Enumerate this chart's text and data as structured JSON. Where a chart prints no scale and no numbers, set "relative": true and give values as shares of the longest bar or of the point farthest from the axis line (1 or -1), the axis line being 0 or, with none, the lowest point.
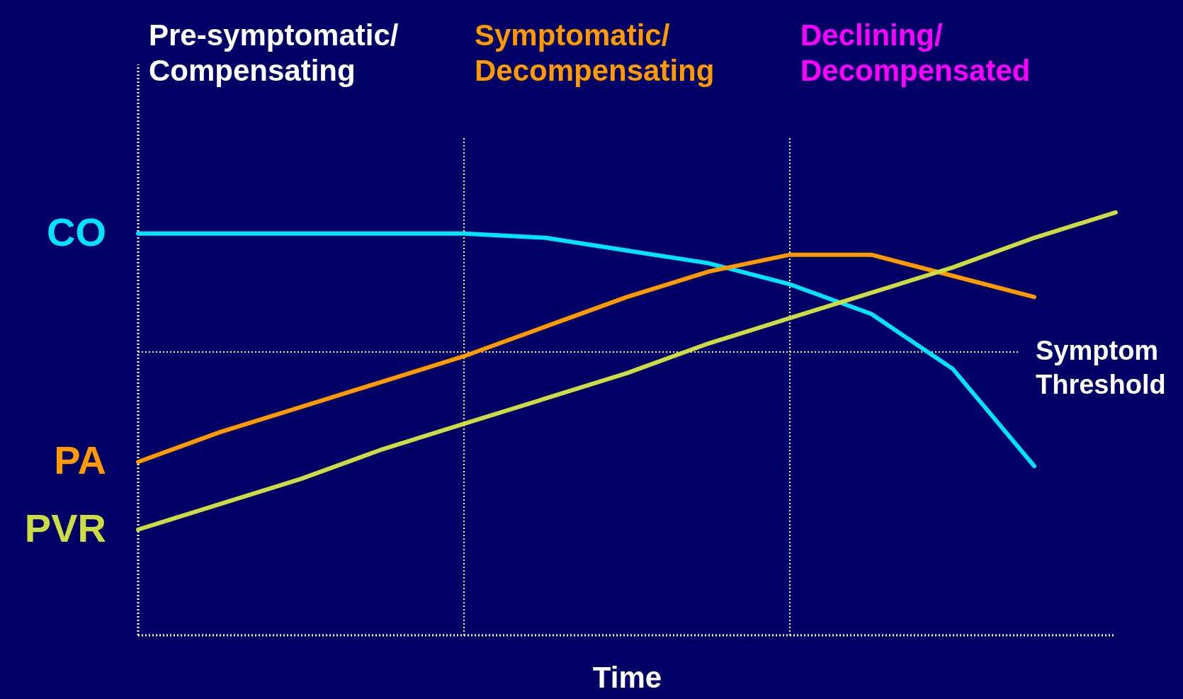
{
  "chart_data": {
    "type": "line",
    "relative": true,
    "xlabel": "Time",
    "categories": [
      null,
      null,
      null,
      null,
      null,
      null,
      null,
      null,
      null,
      null,
      null,
      null,
      null
    ],
    "series": [
      {
        "name": "CO",
        "color": "#00e5ff",
        "values": [
          0.95,
          0.95,
          0.95,
          0.95,
          0.95,
          0.94,
          0.91,
          0.88,
          0.83,
          0.76,
          0.63,
          0.4,
          null
        ]
      },
      {
        "name": "PA",
        "color": "#ff9900",
        "values": [
          0.41,
          0.48,
          0.54,
          0.6,
          0.66,
          0.73,
          0.8,
          0.86,
          0.9,
          0.9,
          0.85,
          0.8,
          null
        ]
      },
      {
        "name": "PVR",
        "color": "#ccdd44",
        "values": [
          0.25,
          0.31,
          0.37,
          0.44,
          0.5,
          0.56,
          0.62,
          0.69,
          0.75,
          0.81,
          0.87,
          0.94,
          1.0
        ]
      }
    ],
    "ref_lines": [
      {
        "axis": "y",
        "value": 0.67,
        "label": "Symptom\nThreshold",
        "color": "#ffffff",
        "line_style": "dotted"
      }
    ],
    "annotations": [
      "Pre-symptomatic/\nCompensating",
      "Symptomatic/\nDecompensating",
      "Declining/\nDecompensated"
    ],
    "grid": false,
    "legend": false,
    "marker": "none",
    "line_style": "solid"
  }
}
